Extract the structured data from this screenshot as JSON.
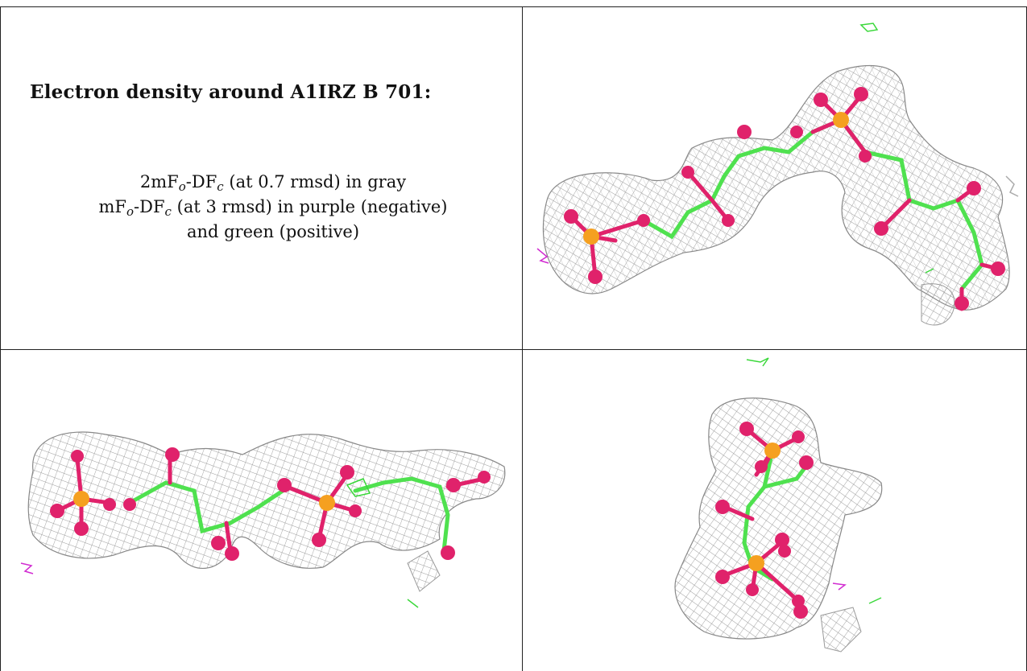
{
  "title": "Electron density around A1IRZ B 701:",
  "legend": {
    "line1": {
      "prefix": "2mF",
      "sub1": "o",
      "mid": "-DF",
      "sub2": "c",
      "suffix": " (at 0.7 rmsd) in gray"
    },
    "line2": {
      "prefix": "mF",
      "sub1": "o",
      "mid": "-DF",
      "sub2": "c",
      "suffix": " (at 3 rmsd) in purple (negative)"
    },
    "line3": "and green (positive)"
  },
  "colors": {
    "mesh": "#9a9a9a",
    "carbon_bond": "#4fe14f",
    "oxygen": "#e0226b",
    "phosphorus": "#f5a020",
    "negative_density": "#d12bd1",
    "positive_density": "#3ad83a",
    "grid_line": "#222222"
  },
  "panels": [
    {
      "id": "top-right",
      "view": "front"
    },
    {
      "id": "bottom-left",
      "view": "side"
    },
    {
      "id": "bottom-right",
      "view": "end-on"
    }
  ]
}
